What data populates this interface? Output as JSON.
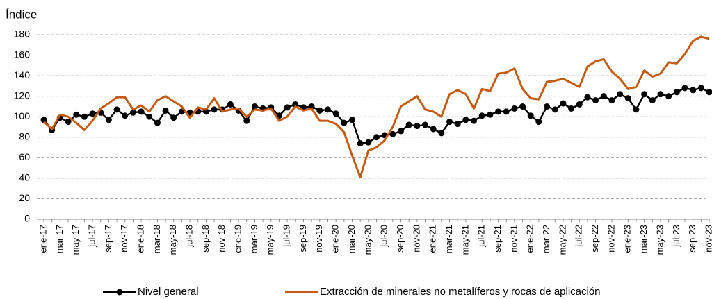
{
  "chart_data": {
    "type": "line",
    "y_label": "Índice",
    "categories": [
      "ene-17",
      null,
      "mar-17",
      null,
      "may-17",
      null,
      "jul-17",
      null,
      "sep-17",
      null,
      "nov-17",
      null,
      "ene-18",
      null,
      "mar-18",
      null,
      "may-18",
      null,
      "jul-18",
      null,
      "sep-18",
      null,
      "nov-18",
      null,
      "ene-19",
      null,
      "mar-19",
      null,
      "may-19",
      null,
      "jul-19",
      null,
      "sep-19",
      null,
      "nov-19",
      null,
      "ene-20",
      null,
      "mar-20",
      null,
      "may-20",
      null,
      "jul-20",
      null,
      "sep-20",
      null,
      "nov-20",
      null,
      "ene-21",
      null,
      "mar-21",
      null,
      "may-21",
      null,
      "jul-21",
      null,
      "sep-21",
      null,
      "nov-21",
      null,
      "ene-22",
      null,
      "mar-22",
      null,
      "may-22",
      null,
      "jul-22",
      null,
      "sep-22",
      null,
      "nov-22",
      null,
      "ene-23",
      null,
      "mar-23",
      null,
      "may-23",
      null,
      "jul-23",
      null,
      "sep-23",
      null,
      "nov-23"
    ],
    "series": [
      {
        "name": "Nivel general",
        "color": "#000000",
        "markers": true,
        "values": [
          97,
          87,
          99,
          95,
          102,
          100,
          103,
          104,
          97,
          107,
          101,
          104,
          105,
          100,
          94,
          106,
          99,
          105,
          104,
          105,
          105,
          107,
          107,
          112,
          106,
          96,
          110,
          108,
          109,
          101,
          109,
          112,
          109,
          110,
          106,
          107,
          103,
          94,
          97,
          74,
          75,
          80,
          82,
          83,
          86,
          92,
          91,
          92,
          88,
          84,
          95,
          93,
          97,
          96,
          101,
          102,
          105,
          105,
          108,
          110,
          101,
          95,
          110,
          107,
          113,
          108,
          112,
          119,
          116,
          120,
          116,
          122,
          118,
          107,
          122,
          116,
          122,
          120,
          124,
          128,
          126,
          128,
          124
        ]
      },
      {
        "name": "Extracción de minerales no metalíferos y rocas de aplicación",
        "color": "#c55a11",
        "markers": false,
        "values": [
          95,
          88,
          102,
          100,
          94,
          87,
          96,
          108,
          113,
          119,
          119,
          107,
          111,
          105,
          116,
          120,
          115,
          110,
          99,
          109,
          107,
          118,
          105,
          107,
          108,
          100,
          107,
          106,
          108,
          96,
          100,
          110,
          106,
          108,
          96,
          96,
          93,
          85,
          62,
          41,
          67,
          70,
          77,
          90,
          110,
          115,
          120,
          107,
          105,
          100,
          122,
          126,
          122,
          108,
          127,
          125,
          142,
          143,
          147,
          127,
          118,
          117,
          134,
          135,
          137,
          133,
          129,
          149,
          154,
          156,
          144,
          137,
          127,
          129,
          145,
          139,
          142,
          153,
          152,
          161,
          174,
          178,
          176
        ]
      }
    ],
    "ylim": [
      0,
      180
    ],
    "yticks": [
      0,
      20,
      40,
      60,
      80,
      100,
      120,
      140,
      160,
      180
    ],
    "grid": true,
    "legend": "bottom"
  }
}
